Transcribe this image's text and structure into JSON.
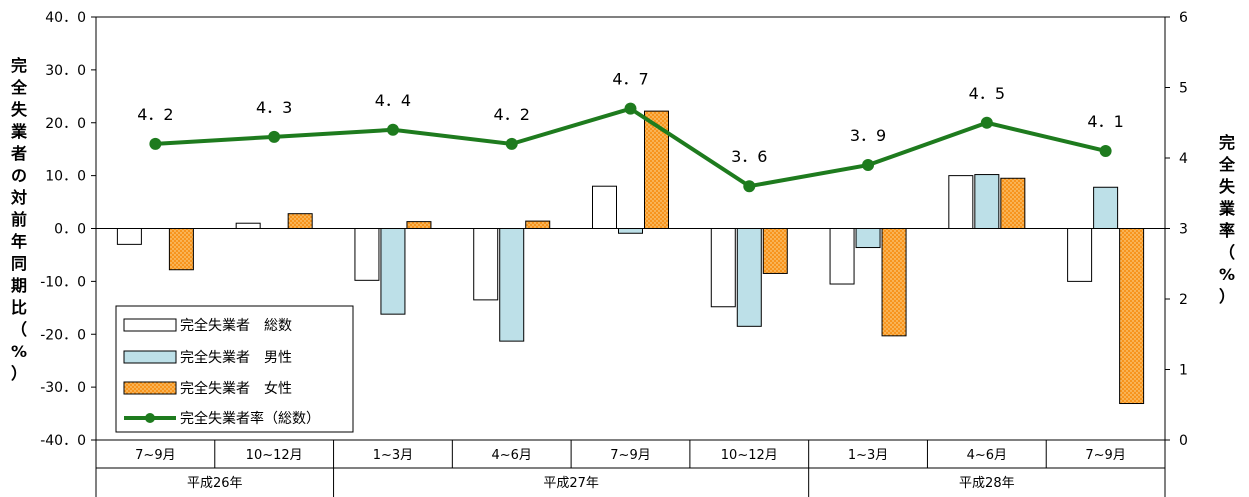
{
  "chart_data": {
    "type": "bar",
    "categories": [
      "7~9月",
      "10~12月",
      "1~3月",
      "4~6月",
      "7~9月",
      "10~12月",
      "1~3月",
      "4~6月",
      "7~9月"
    ],
    "groups": [
      {
        "label": "平成26年",
        "count": 2
      },
      {
        "label": "平成27年",
        "count": 4
      },
      {
        "label": "平成28年",
        "count": 3
      }
    ],
    "series": [
      {
        "name": "完全失業者　総数",
        "type": "bar",
        "axis": "left",
        "color": "#ffffff",
        "values": [
          -3.0,
          1.0,
          -9.8,
          -13.5,
          8.0,
          -14.8,
          -10.5,
          10.0,
          -10.0
        ]
      },
      {
        "name": "完全失業者　男性",
        "type": "bar",
        "axis": "left",
        "color": "#bde0e8",
        "values": [
          0.0,
          0.0,
          -16.2,
          -21.3,
          -0.9,
          -18.5,
          -3.6,
          10.2,
          7.8
        ]
      },
      {
        "name": "完全失業者　女性",
        "type": "bar",
        "axis": "left",
        "color": "#f7941d",
        "values": [
          -7.8,
          2.8,
          1.3,
          1.4,
          22.2,
          -8.5,
          -20.3,
          9.5,
          -33.1
        ]
      },
      {
        "name": "完全失業者率（総数）",
        "type": "line",
        "axis": "right",
        "color": "#1e7b1e",
        "values": [
          4.2,
          4.3,
          4.4,
          4.2,
          4.7,
          3.6,
          3.9,
          4.5,
          4.1
        ],
        "labels": [
          "4．2",
          "4．3",
          "4．4",
          "4．2",
          "4．7",
          "3．6",
          "3．9",
          "4．5",
          "4．1"
        ]
      }
    ],
    "y_left": {
      "label": "完全失業者の対前年同期比（%）",
      "range": [
        -40,
        40
      ],
      "ticks": [
        40,
        30,
        20,
        10,
        0,
        -10,
        -20,
        -30,
        -40
      ],
      "tick_labels": [
        "40．0",
        "30．0",
        "20．0",
        "10．0",
        "0．0",
        "-10．0",
        "-20．0",
        "-30．0",
        "-40．0"
      ]
    },
    "y_right": {
      "label": "完全失業率（%）",
      "range": [
        0,
        6
      ],
      "ticks": [
        6,
        5,
        4,
        3,
        2,
        1,
        0
      ],
      "tick_labels": [
        "6",
        "5",
        "4",
        "3",
        "2",
        "1",
        "0"
      ]
    },
    "grid": false,
    "legend_position": "bottom-left"
  }
}
